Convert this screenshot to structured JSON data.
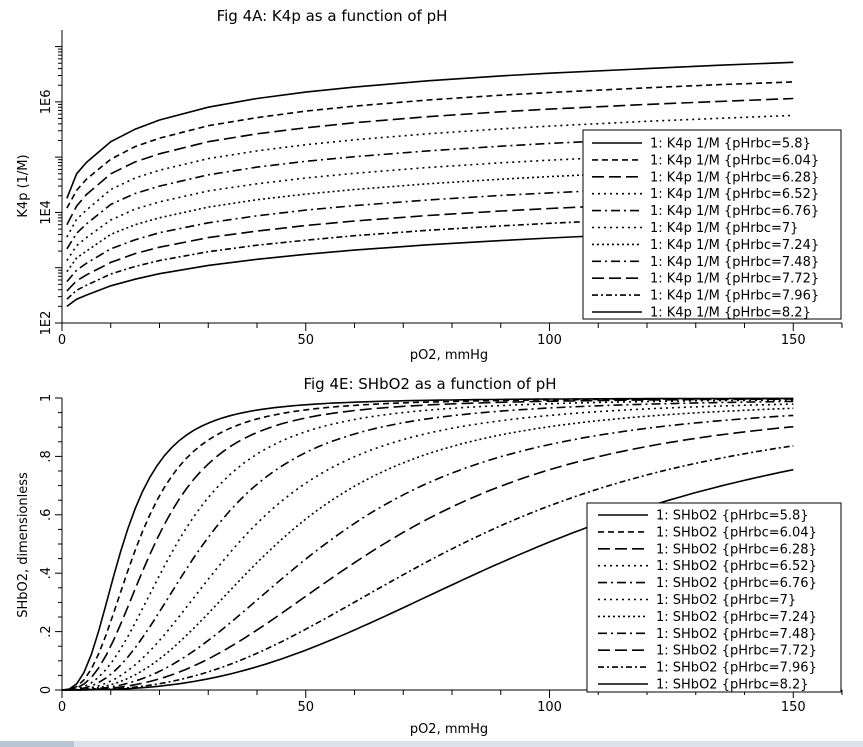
{
  "window": {
    "accent": "#b8c4d2"
  },
  "chart_data": [
    {
      "type": "line",
      "title": "Fig 4A: K4p as a function of pH",
      "xlabel": "pO2, mmHg",
      "ylabel": "K4p (1/M)",
      "xlim": [
        0,
        160
      ],
      "ylim": [
        100,
        20000000
      ],
      "yscale": "log",
      "x_ticks": [
        "0",
        "50",
        "100",
        "150"
      ],
      "y_ticks": [
        "1E2",
        "1E4",
        "1E6"
      ],
      "x": [
        1,
        3,
        5,
        10,
        15,
        20,
        30,
        40,
        50,
        60,
        75,
        90,
        100,
        120,
        135,
        150
      ],
      "series": [
        {
          "name": "1: K4p 1/M {pHrbc=5.8}",
          "dash": "solid",
          "values": [
            18000,
            50000,
            80000,
            190000,
            320000,
            470000,
            800000,
            1150000,
            1500000,
            1850000,
            2400000,
            2950000,
            3300000,
            4000000,
            4600000,
            5200000
          ]
        },
        {
          "name": "1: K4p 1/M {pHrbc=6.04}",
          "dash": "dash",
          "values": [
            12000,
            25000,
            40000,
            92000,
            155000,
            220000,
            370000,
            520000,
            680000,
            840000,
            1080000,
            1320000,
            1480000,
            1800000,
            2050000,
            2300000
          ]
        },
        {
          "name": "1: K4p 1/M {pHrbc=6.28}",
          "dash": "longdash",
          "values": [
            6000,
            13000,
            21000,
            50000,
            82000,
            115000,
            190000,
            265000,
            340000,
            420000,
            540000,
            660000,
            740000,
            900000,
            1020000,
            1150000
          ]
        },
        {
          "name": "1: K4p 1/M {pHrbc=6.52}",
          "dash": "dot",
          "values": [
            3600,
            7500,
            11000,
            26000,
            42000,
            58000,
            94000,
            130000,
            168000,
            206000,
            265000,
            325000,
            365000,
            445000,
            505000,
            570000
          ]
        },
        {
          "name": "1: K4p 1/M {pHrbc=6.76}",
          "dash": "dashdot",
          "values": [
            2200,
            4200,
            6200,
            14000,
            22000,
            30000,
            48000,
            66000,
            84000,
            102000,
            130000,
            158000,
            177000,
            215000,
            244000,
            275000
          ]
        },
        {
          "name": "1: K4p 1/M {pHrbc=7}",
          "dash": "dot",
          "values": [
            1350,
            2500,
            3500,
            7300,
            11500,
            15500,
            24500,
            33000,
            42000,
            51000,
            65000,
            79000,
            88000,
            107000,
            121000,
            136000
          ]
        },
        {
          "name": "1: K4p 1/M {pHrbc=7.24}",
          "dash": "dot2",
          "values": [
            850,
            1500,
            2000,
            4000,
            6000,
            8000,
            12500,
            17000,
            21500,
            26000,
            33000,
            40000,
            44500,
            54000,
            61000,
            68500
          ]
        },
        {
          "name": "1: K4p 1/M {pHrbc=7.48}",
          "dash": "dashdot",
          "values": [
            560,
            900,
            1200,
            2200,
            3200,
            4300,
            6500,
            8700,
            11000,
            13300,
            16800,
            20300,
            22600,
            27300,
            30800,
            34500
          ]
        },
        {
          "name": "1: K4p 1/M {pHrbc=7.72}",
          "dash": "longdash",
          "values": [
            380,
            580,
            740,
            1250,
            1800,
            2350,
            3500,
            4600,
            5800,
            7000,
            8800,
            10600,
            11800,
            14200,
            16000,
            17900
          ]
        },
        {
          "name": "1: K4p 1/M {pHrbc=7.96}",
          "dash": "dashdot2",
          "values": [
            270,
            390,
            480,
            770,
            1050,
            1350,
            1950,
            2550,
            3150,
            3800,
            4750,
            5700,
            6350,
            7600,
            8550,
            9550
          ]
        },
        {
          "name": "1: K4p 1/M {pHrbc=8.2}",
          "dash": "solid",
          "values": [
            200,
            270,
            320,
            470,
            620,
            780,
            1100,
            1420,
            1750,
            2080,
            2600,
            3100,
            3450,
            4150,
            4650,
            5200
          ]
        }
      ]
    },
    {
      "type": "line",
      "title": "Fig 4E: SHbO2 as a function of pH",
      "xlabel": "pO2, mmHg",
      "ylabel": "SHbO2, dimensionless",
      "xlim": [
        0,
        160
      ],
      "ylim": [
        0,
        1
      ],
      "x_ticks": [
        "0",
        "50",
        "100",
        "150"
      ],
      "y_ticks": [
        "0",
        ".2",
        ".4",
        ".6",
        ".8",
        "1"
      ],
      "series": [
        {
          "name": "1: SHbO2 {pHrbc=5.8}",
          "dash": "solid",
          "p50": 12.5,
          "n": 2.7
        },
        {
          "name": "1: SHbO2 {pHrbc=6.04}",
          "dash": "dash",
          "p50": 15.5,
          "n": 2.7
        },
        {
          "name": "1: SHbO2 {pHrbc=6.28}",
          "dash": "longdash",
          "p50": 19.0,
          "n": 2.7
        },
        {
          "name": "1: SHbO2 {pHrbc=6.52}",
          "dash": "dot",
          "p50": 23.5,
          "n": 2.7
        },
        {
          "name": "1: SHbO2 {pHrbc=6.76}",
          "dash": "dashdot",
          "p50": 29.0,
          "n": 2.7
        },
        {
          "name": "1: SHbO2 {pHrbc=7}",
          "dash": "dot",
          "p50": 36.0,
          "n": 2.7
        },
        {
          "name": "1: SHbO2 {pHrbc=7.24}",
          "dash": "dot2",
          "p50": 44.0,
          "n": 2.7
        },
        {
          "name": "1: SHbO2 {pHrbc=7.48}",
          "dash": "dashdot",
          "p50": 54.0,
          "n": 2.7
        },
        {
          "name": "1: SHbO2 {pHrbc=7.72}",
          "dash": "longdash",
          "p50": 66.0,
          "n": 2.7
        },
        {
          "name": "1: SHbO2 {pHrbc=7.96}",
          "dash": "dashdot2",
          "p50": 82.0,
          "n": 2.7
        },
        {
          "name": "1: SHbO2 {pHrbc=8.2}",
          "dash": "solid",
          "p50": 99.0,
          "n": 2.7
        }
      ]
    }
  ]
}
